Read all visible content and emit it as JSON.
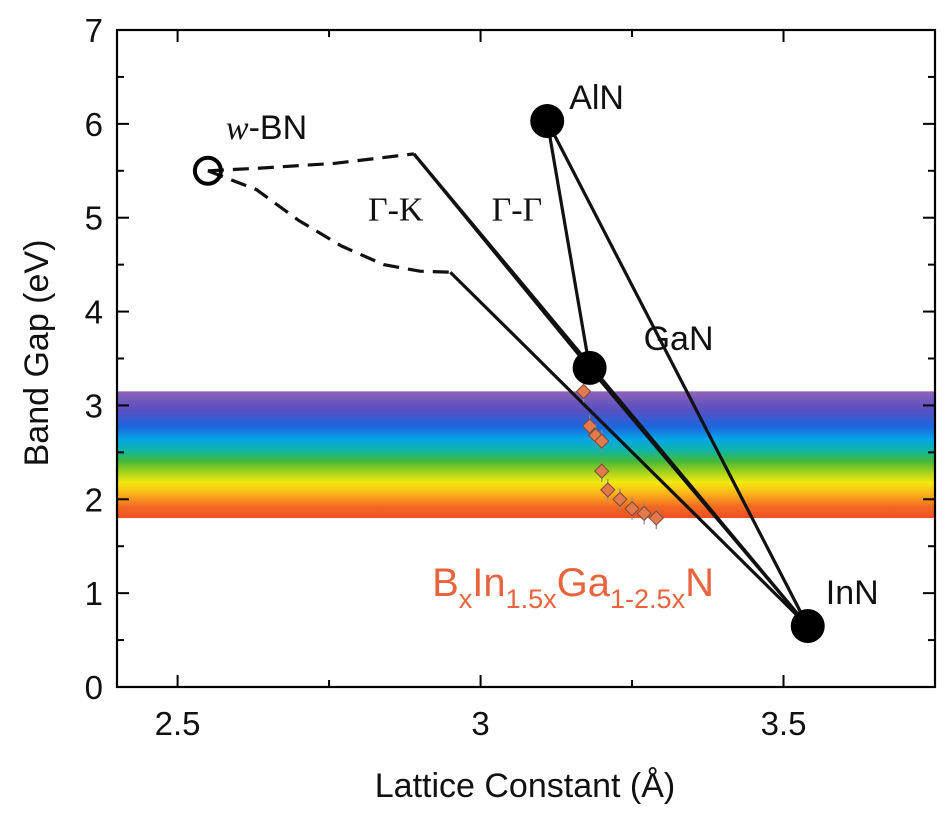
{
  "chart_data": {
    "type": "scatter",
    "xlabel": "Lattice Constant (Å)",
    "ylabel": "Band Gap (eV)",
    "xlim": [
      2.4,
      3.75
    ],
    "ylim": [
      0,
      7
    ],
    "xticks": [
      {
        "v": 2.5,
        "label": "2.5"
      },
      {
        "v": 3,
        "label": "3"
      },
      {
        "v": 3.5,
        "label": "3.5"
      }
    ],
    "yticks": [
      {
        "v": 0,
        "label": "0"
      },
      {
        "v": 1,
        "label": "1"
      },
      {
        "v": 2,
        "label": "2"
      },
      {
        "v": 3,
        "label": "3"
      },
      {
        "v": 4,
        "label": "4"
      },
      {
        "v": 5,
        "label": "5"
      },
      {
        "v": 6,
        "label": "6"
      },
      {
        "v": 7,
        "label": "7"
      }
    ],
    "spectrum_band": {
      "ymin": 1.8,
      "ymax": 3.15
    },
    "compounds": [
      {
        "name": "AlN",
        "x": 3.11,
        "y": 6.03,
        "marker": "filled"
      },
      {
        "name": "GaN",
        "x": 3.18,
        "y": 3.4,
        "marker": "filled"
      },
      {
        "name": "InN",
        "x": 3.54,
        "y": 0.65,
        "marker": "filled"
      },
      {
        "name": "w-BN",
        "name_prefix": "w",
        "name_suffix": "-BN",
        "x": 2.55,
        "y": 5.5,
        "marker": "open"
      }
    ],
    "solid_lines": [
      {
        "x": [
          3.11,
          3.18
        ],
        "y": [
          6.03,
          3.4
        ]
      },
      {
        "x": [
          3.11,
          3.54
        ],
        "y": [
          6.03,
          0.65
        ]
      },
      {
        "x": [
          3.18,
          3.54
        ],
        "y": [
          3.4,
          0.65
        ]
      },
      {
        "x": [
          2.89,
          3.18
        ],
        "y": [
          5.68,
          3.4
        ]
      },
      {
        "x": [
          2.89,
          3.54
        ],
        "y": [
          5.68,
          0.65
        ]
      },
      {
        "x": [
          2.95,
          3.54
        ],
        "y": [
          4.42,
          0.65
        ]
      }
    ],
    "dashed_lines": [
      {
        "x": [
          2.55,
          2.64,
          2.76,
          2.89
        ],
        "y": [
          5.5,
          5.53,
          5.58,
          5.68
        ]
      },
      {
        "x": [
          2.55,
          2.63,
          2.7,
          2.77,
          2.84,
          2.9,
          2.95
        ],
        "y": [
          5.5,
          5.3,
          4.97,
          4.7,
          4.5,
          4.43,
          4.42
        ]
      }
    ],
    "experimental_points": [
      {
        "x": 3.17,
        "y": 3.15
      },
      {
        "x": 3.18,
        "y": 2.78
      },
      {
        "x": 3.19,
        "y": 2.68
      },
      {
        "x": 3.2,
        "y": 2.62
      },
      {
        "x": 3.2,
        "y": 2.3
      },
      {
        "x": 3.21,
        "y": 2.1
      },
      {
        "x": 3.23,
        "y": 2.0
      },
      {
        "x": 3.25,
        "y": 1.9
      },
      {
        "x": 3.27,
        "y": 1.85
      },
      {
        "x": 3.29,
        "y": 1.8
      }
    ],
    "annotations": [
      {
        "text": "Γ-K",
        "x": 2.86,
        "y": 5.1
      },
      {
        "text": "Γ-Γ",
        "x": 3.06,
        "y": 5.1
      }
    ],
    "formula_label": {
      "x": 2.92,
      "y": 1.12,
      "parts": [
        {
          "t": "B",
          "sub": false
        },
        {
          "t": "x",
          "sub": true
        },
        {
          "t": "In",
          "sub": false
        },
        {
          "t": "1.5x",
          "sub": true
        },
        {
          "t": "Ga",
          "sub": false
        },
        {
          "t": "1-2.5x",
          "sub": true
        },
        {
          "t": "N",
          "sub": false
        }
      ]
    },
    "colors": {
      "line": "#111111",
      "experimental_fill": "#e27a4e",
      "formula": "#e8643c"
    }
  }
}
